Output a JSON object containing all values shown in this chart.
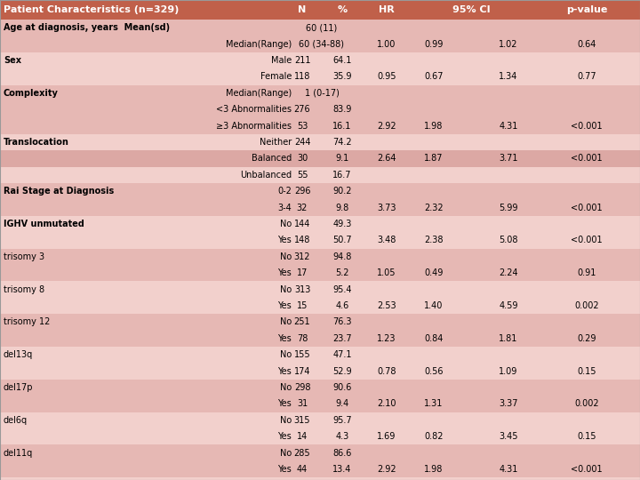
{
  "title": "Patient Characteristics (n=329)",
  "header_bg": "#c0604a",
  "header_text_color": "#ffffff",
  "row_bg_A": "#f2d0cc",
  "row_bg_B": "#e6b8b4",
  "row_bg_shaded": "#dca8a4",
  "text_color": "#000000",
  "rows": [
    {
      "label": "Age at diagnosis, years  Mean(sd)",
      "sub": "",
      "N": "60 (11)",
      "pct": "",
      "HR": "",
      "CI_lo": "",
      "CI_hi": "",
      "pval": "",
      "group_start": true,
      "bold_label": true,
      "merged_N": true
    },
    {
      "label": "",
      "sub": "Median(Range)",
      "N": "60 (34-88)",
      "pct": "",
      "HR": "1.00",
      "CI_lo": "0.99",
      "CI_hi": "1.02",
      "pval": "0.64",
      "group_start": false,
      "bold_label": false,
      "merged_N": true
    },
    {
      "label": "Sex",
      "sub": "Male",
      "N": "211",
      "pct": "64.1",
      "HR": "",
      "CI_lo": "",
      "CI_hi": "",
      "pval": "",
      "group_start": true,
      "bold_label": true,
      "merged_N": false
    },
    {
      "label": "",
      "sub": "Female",
      "N": "118",
      "pct": "35.9",
      "HR": "0.95",
      "CI_lo": "0.67",
      "CI_hi": "1.34",
      "pval": "0.77",
      "group_start": false,
      "bold_label": false,
      "merged_N": false
    },
    {
      "label": "Complexity",
      "sub": "Median(Range)",
      "N": "1 (0-17)",
      "pct": "",
      "HR": "",
      "CI_lo": "",
      "CI_hi": "",
      "pval": "",
      "group_start": true,
      "bold_label": true,
      "merged_N": true
    },
    {
      "label": "",
      "sub": "<3 Abnormalities",
      "N": "276",
      "pct": "83.9",
      "HR": "",
      "CI_lo": "",
      "CI_hi": "",
      "pval": "",
      "group_start": false,
      "bold_label": false,
      "merged_N": false
    },
    {
      "label": "",
      "sub": "≥3 Abnormalities",
      "N": "53",
      "pct": "16.1",
      "HR": "2.92",
      "CI_lo": "1.98",
      "CI_hi": "4.31",
      "pval": "<0.001",
      "group_start": false,
      "bold_label": false,
      "merged_N": false
    },
    {
      "label": "Translocation",
      "sub": "Neither",
      "N": "244",
      "pct": "74.2",
      "HR": "",
      "CI_lo": "",
      "CI_hi": "",
      "pval": "",
      "group_start": true,
      "bold_label": true,
      "merged_N": false
    },
    {
      "label": "",
      "sub": "Balanced",
      "N": "30",
      "pct": "9.1",
      "HR": "2.64",
      "CI_lo": "1.87",
      "CI_hi": "3.71",
      "pval": "<0.001",
      "group_start": false,
      "bold_label": false,
      "merged_N": false,
      "special_shade": true
    },
    {
      "label": "",
      "sub": "Unbalanced",
      "N": "55",
      "pct": "16.7",
      "HR": "",
      "CI_lo": "",
      "CI_hi": "",
      "pval": "",
      "group_start": false,
      "bold_label": false,
      "merged_N": false
    },
    {
      "label": "Rai Stage at Diagnosis",
      "sub": "0-2",
      "N": "296",
      "pct": "90.2",
      "HR": "",
      "CI_lo": "",
      "CI_hi": "",
      "pval": "",
      "group_start": true,
      "bold_label": true,
      "merged_N": false
    },
    {
      "label": "",
      "sub": "3-4",
      "N": "32",
      "pct": "9.8",
      "HR": "3.73",
      "CI_lo": "2.32",
      "CI_hi": "5.99",
      "pval": "<0.001",
      "group_start": false,
      "bold_label": false,
      "merged_N": false
    },
    {
      "label": "IGHV unmutated",
      "sub": "No",
      "N": "144",
      "pct": "49.3",
      "HR": "",
      "CI_lo": "",
      "CI_hi": "",
      "pval": "",
      "group_start": true,
      "bold_label": true,
      "merged_N": false
    },
    {
      "label": "",
      "sub": "Yes",
      "N": "148",
      "pct": "50.7",
      "HR": "3.48",
      "CI_lo": "2.38",
      "CI_hi": "5.08",
      "pval": "<0.001",
      "group_start": false,
      "bold_label": false,
      "merged_N": false
    },
    {
      "label": "trisomy 3",
      "sub": "No",
      "N": "312",
      "pct": "94.8",
      "HR": "",
      "CI_lo": "",
      "CI_hi": "",
      "pval": "",
      "group_start": true,
      "bold_label": false,
      "merged_N": false
    },
    {
      "label": "",
      "sub": "Yes",
      "N": "17",
      "pct": "5.2",
      "HR": "1.05",
      "CI_lo": "0.49",
      "CI_hi": "2.24",
      "pval": "0.91",
      "group_start": false,
      "bold_label": false,
      "merged_N": false
    },
    {
      "label": "trisomy 8",
      "sub": "No",
      "N": "313",
      "pct": "95.4",
      "HR": "",
      "CI_lo": "",
      "CI_hi": "",
      "pval": "",
      "group_start": true,
      "bold_label": false,
      "merged_N": false
    },
    {
      "label": "",
      "sub": "Yes",
      "N": "15",
      "pct": "4.6",
      "HR": "2.53",
      "CI_lo": "1.40",
      "CI_hi": "4.59",
      "pval": "0.002",
      "group_start": false,
      "bold_label": false,
      "merged_N": false
    },
    {
      "label": "trisomy 12",
      "sub": "No",
      "N": "251",
      "pct": "76.3",
      "HR": "",
      "CI_lo": "",
      "CI_hi": "",
      "pval": "",
      "group_start": true,
      "bold_label": false,
      "merged_N": false
    },
    {
      "label": "",
      "sub": "Yes",
      "N": "78",
      "pct": "23.7",
      "HR": "1.23",
      "CI_lo": "0.84",
      "CI_hi": "1.81",
      "pval": "0.29",
      "group_start": false,
      "bold_label": false,
      "merged_N": false
    },
    {
      "label": "del13q",
      "sub": "No",
      "N": "155",
      "pct": "47.1",
      "HR": "",
      "CI_lo": "",
      "CI_hi": "",
      "pval": "",
      "group_start": true,
      "bold_label": false,
      "merged_N": false
    },
    {
      "label": "",
      "sub": "Yes",
      "N": "174",
      "pct": "52.9",
      "HR": "0.78",
      "CI_lo": "0.56",
      "CI_hi": "1.09",
      "pval": "0.15",
      "group_start": false,
      "bold_label": false,
      "merged_N": false
    },
    {
      "label": "del17p",
      "sub": "No",
      "N": "298",
      "pct": "90.6",
      "HR": "",
      "CI_lo": "",
      "CI_hi": "",
      "pval": "",
      "group_start": true,
      "bold_label": false,
      "merged_N": false
    },
    {
      "label": "",
      "sub": "Yes",
      "N": "31",
      "pct": "9.4",
      "HR": "2.10",
      "CI_lo": "1.31",
      "CI_hi": "3.37",
      "pval": "0.002",
      "group_start": false,
      "bold_label": false,
      "merged_N": false
    },
    {
      "label": "del6q",
      "sub": "No",
      "N": "315",
      "pct": "95.7",
      "HR": "",
      "CI_lo": "",
      "CI_hi": "",
      "pval": "",
      "group_start": true,
      "bold_label": false,
      "merged_N": false
    },
    {
      "label": "",
      "sub": "Yes",
      "N": "14",
      "pct": "4.3",
      "HR": "1.69",
      "CI_lo": "0.82",
      "CI_hi": "3.45",
      "pval": "0.15",
      "group_start": false,
      "bold_label": false,
      "merged_N": false
    },
    {
      "label": "del11q",
      "sub": "No",
      "N": "285",
      "pct": "86.6",
      "HR": "",
      "CI_lo": "",
      "CI_hi": "",
      "pval": "",
      "group_start": true,
      "bold_label": false,
      "merged_N": false
    },
    {
      "label": "",
      "sub": "Yes",
      "N": "44",
      "pct": "13.4",
      "HR": "2.92",
      "CI_lo": "1.98",
      "CI_hi": "4.31",
      "pval": "<0.001",
      "group_start": false,
      "bold_label": false,
      "merged_N": false
    }
  ],
  "figsize": [
    7.2,
    5.4
  ],
  "dpi": 100
}
